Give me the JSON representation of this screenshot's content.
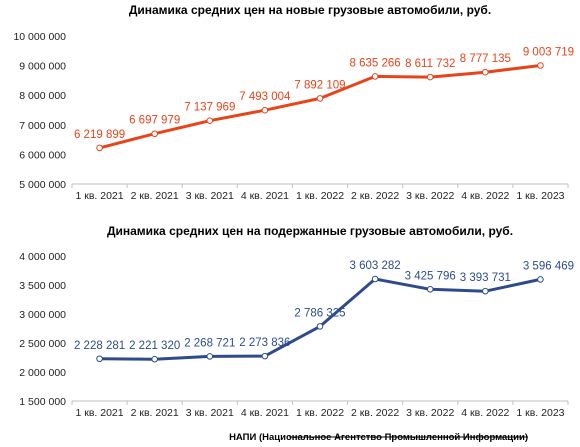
{
  "footer": "НАПИ (Национальное Агентство Промышленной Информации)",
  "chart_data": [
    {
      "type": "line",
      "title": "Динамика средних цен на новые грузовые автомобили, руб.",
      "categories": [
        "1 кв. 2021",
        "2 кв. 2021",
        "3 кв. 2021",
        "4 кв. 2021",
        "1 кв. 2022",
        "2 кв. 2022",
        "3 кв. 2022",
        "4 кв. 2022",
        "1 кв. 2023"
      ],
      "series": [
        {
          "values": [
            6219899,
            6697979,
            7137969,
            7493004,
            7892109,
            8635266,
            8611732,
            8777135,
            9003719
          ],
          "labels": [
            "6 219 899",
            "6 697 979",
            "7 137 969",
            "7 493 004",
            "7 892 109",
            "8 635 266",
            "8 611 732",
            "8 777 135",
            "9 003 719"
          ],
          "color": "#e8441a"
        }
      ],
      "ylim": [
        5000000,
        10000000
      ],
      "yticks": [
        5000000,
        6000000,
        7000000,
        8000000,
        9000000,
        10000000
      ],
      "ytick_labels": [
        "5 000 000",
        "6 000 000",
        "7 000 000",
        "8 000 000",
        "9 000 000",
        "10 000 000"
      ],
      "grid": false,
      "marker": "hollow-circle"
    },
    {
      "type": "line",
      "title": "Динамика средних цен на подержанные грузовые автомобили, руб.",
      "categories": [
        "1 кв. 2021",
        "2 кв. 2021",
        "3 кв. 2021",
        "4 кв. 2021",
        "1 кв. 2022",
        "2 кв. 2022",
        "3 кв. 2022",
        "4 кв. 2022",
        "1 кв. 2023"
      ],
      "series": [
        {
          "values": [
            2228281,
            2221320,
            2268721,
            2273836,
            2786325,
            3603282,
            3425796,
            3393731,
            3596469
          ],
          "labels": [
            "2 228 281",
            "2 221 320",
            "2 268 721",
            "2 273 836",
            "2 786 325",
            "3 603 282",
            "3 425 796",
            "3 393 731",
            "3 596 469"
          ],
          "color": "#2e4c8c"
        }
      ],
      "ylim": [
        1500000,
        4000000
      ],
      "yticks": [
        1500000,
        2000000,
        2500000,
        3000000,
        3500000,
        4000000
      ],
      "ytick_labels": [
        "1 500 000",
        "2 000 000",
        "2 500 000",
        "3 000 000",
        "3 500 000",
        "4 000 000"
      ],
      "grid": false,
      "marker": "hollow-circle"
    }
  ]
}
